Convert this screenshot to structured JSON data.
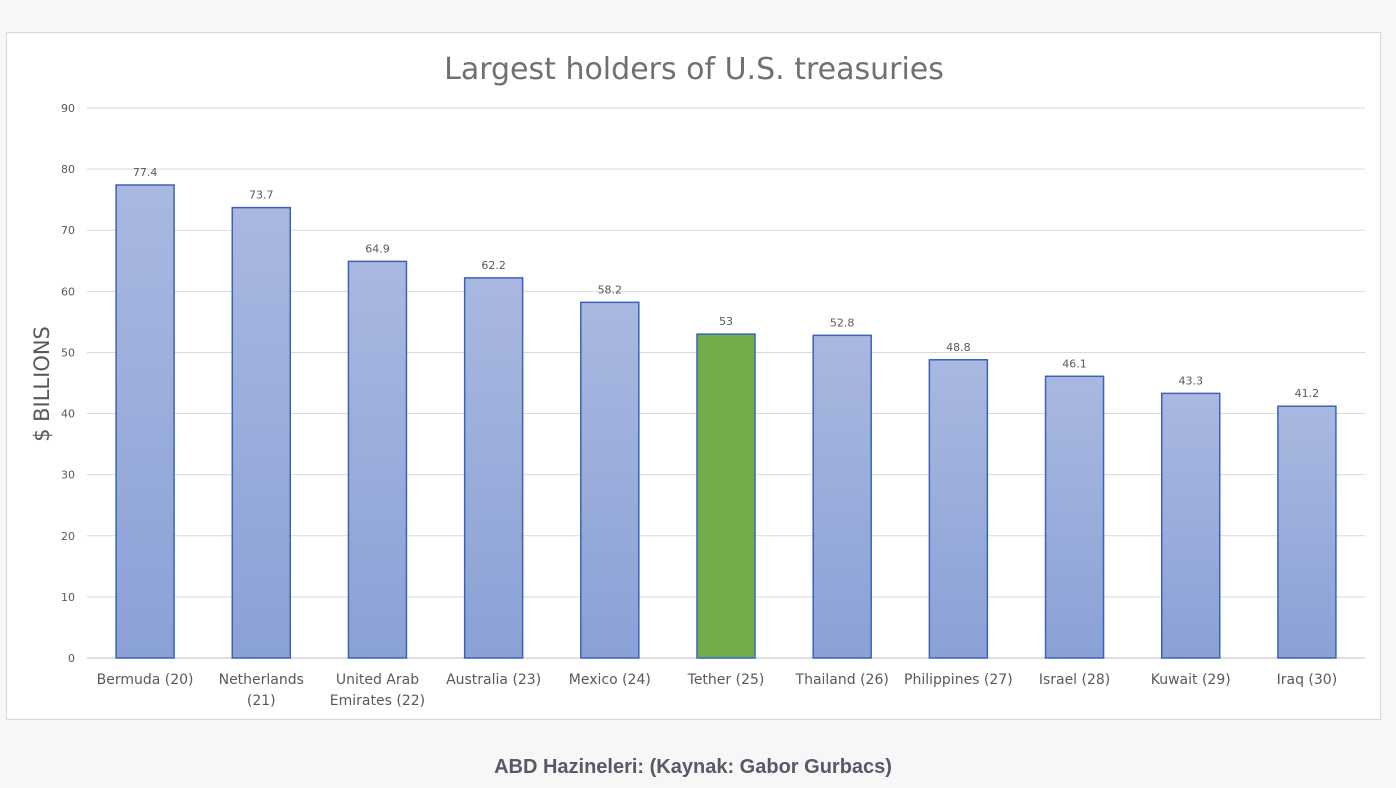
{
  "caption": "ABD Hazineleri: (Kaynak: Gabor Gurbacs)",
  "chart_data": {
    "type": "bar",
    "title": "Largest holders of U.S. treasuries",
    "xlabel": "",
    "ylabel": "$ BILLIONS",
    "ylim": [
      0,
      90
    ],
    "yticks": [
      0,
      10,
      20,
      30,
      40,
      50,
      60,
      70,
      80,
      90
    ],
    "grid": true,
    "legend": "none",
    "categories": [
      [
        "Bermuda (20)"
      ],
      [
        "Netherlands",
        "(21)"
      ],
      [
        "United Arab",
        "Emirates (22)"
      ],
      [
        "Australia (23)"
      ],
      [
        "Mexico (24)"
      ],
      [
        "Tether (25)"
      ],
      [
        "Thailand (26)"
      ],
      [
        "Philippines (27)"
      ],
      [
        "Israel (28)"
      ],
      [
        "Kuwait (29)"
      ],
      [
        "Iraq (30)"
      ]
    ],
    "values": [
      77.4,
      73.7,
      64.9,
      62.2,
      58.2,
      53,
      52.8,
      48.8,
      46.1,
      43.3,
      41.2
    ],
    "data_labels": [
      "77.4",
      "73.7",
      "64.9",
      "62.2",
      "58.2",
      "53",
      "52.8",
      "48.8",
      "46.1",
      "43.3",
      "41.2"
    ],
    "highlight_index": 5,
    "colors": {
      "bar_top": "#a9b8e0",
      "bar_bottom": "#8aa1d6",
      "bar_border": "#3a63b8",
      "highlight": "#70ad47",
      "highlight_border": "#3a63b8",
      "grid": "#d9d9d9",
      "title": "#707070",
      "text": "#595959"
    }
  }
}
